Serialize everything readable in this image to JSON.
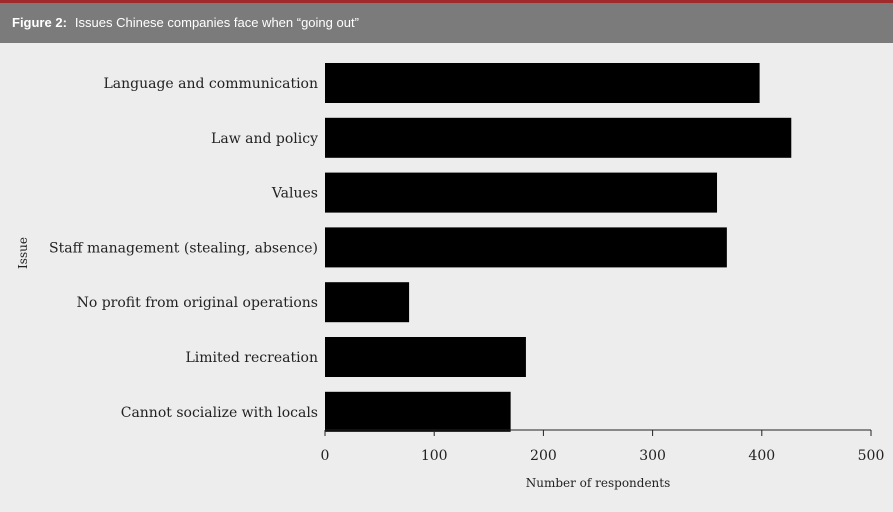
{
  "header": {
    "figure_label": "Figure 2:",
    "title": "Issues Chinese companies face when “going out”"
  },
  "colors": {
    "header_bg": "#7b7b7b",
    "accent_rule": "#9e2a2b",
    "bar_fill": "#000000",
    "background": "#ededed"
  },
  "chart_data": {
    "type": "bar",
    "orientation": "horizontal",
    "categories": [
      "Language and communication",
      "Law and policy",
      "Values",
      "Staff management (stealing, absence)",
      "No profit from original operations",
      "Limited recreation",
      "Cannot socialize with locals"
    ],
    "values": [
      398,
      427,
      359,
      368,
      77,
      184,
      170
    ],
    "xlabel": "Number of respondents",
    "ylabel": "Issue",
    "xlim": [
      0,
      500
    ],
    "xticks": [
      "0",
      "100",
      "200",
      "300",
      "400",
      "500"
    ],
    "grid": false,
    "legend": "none"
  }
}
